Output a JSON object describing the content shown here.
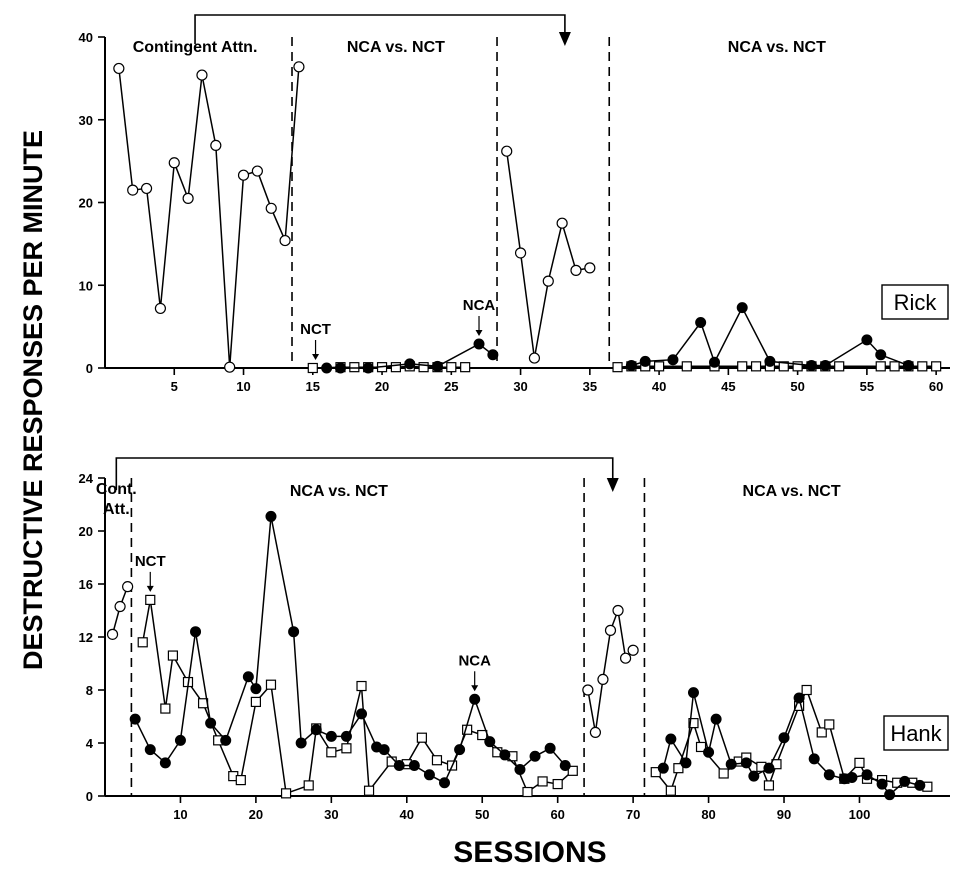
{
  "y_axis_label": "DESTRUCTIVE RESPONSES PER MINUTE",
  "x_axis_label": "SESSIONS",
  "chart_data": [
    {
      "type": "line",
      "participant": "Rick",
      "xlabel": "SESSIONS",
      "ylabel": "DESTRUCTIVE RESPONSES PER MINUTE",
      "xlim": [
        0,
        61
      ],
      "ylim": [
        0,
        40
      ],
      "x_ticks": [
        5,
        10,
        15,
        20,
        25,
        30,
        35,
        40,
        45,
        50,
        55,
        60
      ],
      "y_ticks": [
        0,
        10,
        20,
        30,
        40
      ],
      "phase_lines_x": [
        13.5,
        28.3,
        36.4
      ],
      "phase_labels": [
        {
          "text": "Contingent Attn.",
          "x": 6.5
        },
        {
          "text": "NCA vs. NCT",
          "x": 21
        },
        {
          "text": "NCA vs. NCT",
          "x": 48.5
        }
      ],
      "series": [
        {
          "name": "Contingent Attn.",
          "marker": "open-circle",
          "segment": "A1",
          "x": [
            1,
            2,
            3,
            4,
            5,
            6,
            7,
            8,
            9,
            10,
            11,
            12,
            13,
            14
          ],
          "y": [
            36.2,
            21.5,
            21.7,
            7.2,
            24.8,
            20.5,
            35.4,
            26.9,
            0.1,
            23.3,
            23.8,
            19.3,
            15.4,
            36.4
          ]
        },
        {
          "name": "NCT",
          "marker": "open-square",
          "segment": "B1",
          "x": [
            15,
            17,
            18,
            19,
            20,
            21,
            22,
            23,
            24,
            25,
            26
          ],
          "y": [
            0,
            0.1,
            0.1,
            0.1,
            0.1,
            0.1,
            0.2,
            0.1,
            0.1,
            0.1,
            0.1
          ]
        },
        {
          "name": "NCA",
          "marker": "filled-circle",
          "segment": "B1",
          "x": [
            16,
            17,
            19,
            22,
            24,
            27,
            28
          ],
          "y": [
            0,
            0,
            0,
            0.5,
            0.2,
            2.9,
            1.6
          ]
        },
        {
          "name": "Contingent Attn.",
          "marker": "open-circle",
          "segment": "A2",
          "x": [
            29,
            30,
            31,
            32,
            33,
            34,
            35
          ],
          "y": [
            26.2,
            13.9,
            1.2,
            10.5,
            17.5,
            11.8,
            12.1
          ]
        },
        {
          "name": "NCT",
          "marker": "open-square",
          "segment": "B2",
          "x": [
            37,
            38,
            39,
            40,
            42,
            44,
            46,
            47,
            48,
            49,
            50,
            51,
            52,
            53,
            56,
            57,
            58,
            59,
            60
          ],
          "y": [
            0.1,
            0.2,
            0.2,
            0.2,
            0.2,
            0.2,
            0.2,
            0.2,
            0.2,
            0.2,
            0.2,
            0.2,
            0.2,
            0.2,
            0.2,
            0.2,
            0.2,
            0.2,
            0.2
          ]
        },
        {
          "name": "NCA",
          "marker": "filled-circle",
          "segment": "B2",
          "x": [
            38,
            39,
            41,
            43,
            44,
            46,
            48,
            51,
            52,
            55,
            56,
            58
          ],
          "y": [
            0.3,
            0.8,
            1.0,
            5.5,
            0.7,
            7.3,
            0.8,
            0.3,
            0.3,
            3.4,
            1.6,
            0.3
          ]
        }
      ],
      "annotations": [
        {
          "text": "NCT",
          "x": 15.2,
          "y": 0
        },
        {
          "text": "NCA",
          "x": 27,
          "y": 2.9
        }
      ],
      "participant_label": "Rick"
    },
    {
      "type": "line",
      "participant": "Hank",
      "xlabel": "SESSIONS",
      "ylabel": "DESTRUCTIVE RESPONSES PER MINUTE",
      "xlim": [
        0,
        112
      ],
      "ylim": [
        0,
        24
      ],
      "x_ticks": [
        10,
        20,
        30,
        40,
        50,
        60,
        70,
        80,
        90,
        100
      ],
      "y_ticks": [
        0,
        4,
        8,
        12,
        16,
        20,
        24
      ],
      "phase_lines_x": [
        3.5,
        63.5,
        71.5
      ],
      "phase_labels": [
        {
          "text": "Cont.",
          "x": 1.5,
          "line": 1
        },
        {
          "text": "Att.",
          "x": 1.5,
          "line": 2
        },
        {
          "text": "NCA vs. NCT",
          "x": 31
        },
        {
          "text": "NCA vs. NCT",
          "x": 91
        }
      ],
      "series": [
        {
          "name": "Contingent Attn.",
          "marker": "open-circle",
          "segment": "A1",
          "x": [
            1,
            2,
            3
          ],
          "y": [
            12.2,
            14.3,
            15.8
          ]
        },
        {
          "name": "NCT",
          "marker": "open-square",
          "segment": "B1",
          "x": [
            5,
            6,
            8,
            9,
            11,
            13,
            15,
            17,
            18,
            20,
            22,
            24,
            27,
            28,
            30,
            32,
            34,
            35,
            38,
            40,
            42,
            44,
            46,
            48,
            50,
            52,
            54,
            56,
            58,
            60,
            62
          ],
          "y": [
            11.6,
            14.8,
            6.6,
            10.6,
            8.6,
            7.0,
            4.2,
            1.5,
            1.2,
            7.1,
            8.4,
            0.2,
            0.8,
            5.1,
            3.3,
            3.6,
            8.3,
            0.4,
            2.6,
            2.4,
            4.4,
            2.7,
            2.3,
            5.0,
            4.6,
            3.3,
            3.0,
            0.3,
            1.1,
            0.9,
            1.9
          ]
        },
        {
          "name": "NCA",
          "marker": "filled-circle",
          "segment": "B1",
          "x": [
            4,
            6,
            8,
            10,
            12,
            14,
            16,
            19,
            20,
            22,
            25,
            26,
            28,
            30,
            32,
            34,
            36,
            37,
            39,
            41,
            43,
            45,
            47,
            49,
            51,
            53,
            55,
            57,
            59,
            61
          ],
          "y": [
            5.8,
            3.5,
            2.5,
            4.2,
            12.4,
            5.5,
            4.2,
            9.0,
            8.1,
            21.1,
            12.4,
            4.0,
            5.0,
            4.5,
            4.5,
            6.2,
            3.7,
            3.5,
            2.3,
            2.3,
            1.6,
            1.0,
            3.5,
            7.3,
            4.1,
            3.1,
            2.0,
            3.0,
            3.6,
            2.3
          ]
        },
        {
          "name": "Contingent Attn.",
          "marker": "open-circle",
          "segment": "A2",
          "x": [
            64,
            65,
            66,
            67,
            68,
            69,
            70
          ],
          "y": [
            8.0,
            4.8,
            8.8,
            12.5,
            14.0,
            10.4,
            11.0
          ]
        },
        {
          "name": "NCT",
          "marker": "open-square",
          "segment": "B2",
          "x": [
            73,
            75,
            76,
            78,
            79,
            82,
            84,
            85,
            87,
            88,
            89,
            92,
            93,
            95,
            96,
            98,
            100,
            101,
            103,
            105,
            107,
            109
          ],
          "y": [
            1.8,
            0.4,
            2.1,
            5.5,
            3.7,
            1.7,
            2.6,
            2.9,
            2.2,
            0.8,
            2.4,
            6.8,
            8.0,
            4.8,
            5.4,
            1.3,
            2.5,
            1.3,
            1.2,
            1.0,
            1.0,
            0.7
          ]
        },
        {
          "name": "NCA",
          "marker": "filled-circle",
          "segment": "B2",
          "x": [
            74,
            75,
            77,
            78,
            80,
            81,
            83,
            85,
            86,
            88,
            90,
            92,
            94,
            96,
            98,
            99,
            101,
            103,
            104,
            106,
            108
          ],
          "y": [
            2.1,
            4.3,
            2.5,
            7.8,
            3.3,
            5.8,
            2.4,
            2.5,
            1.5,
            2.1,
            4.4,
            7.4,
            2.8,
            1.6,
            1.3,
            1.4,
            1.6,
            0.9,
            0.1,
            1.1,
            0.8
          ]
        }
      ],
      "annotations": [
        {
          "text": "NCT",
          "x": 6,
          "y": 14.8
        },
        {
          "text": "NCA",
          "x": 49,
          "y": 7.3
        }
      ],
      "participant_label": "Hank"
    }
  ]
}
